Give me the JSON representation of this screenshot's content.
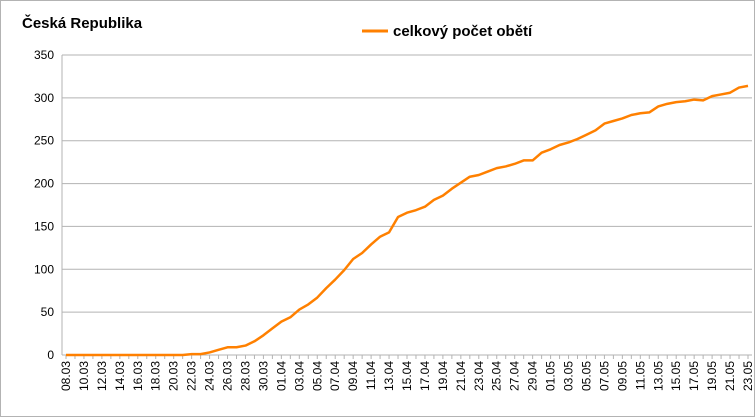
{
  "chart_data": {
    "type": "line",
    "title": "Česká Republika",
    "categories": [
      "08.03",
      null,
      "10.03",
      null,
      "12.03",
      null,
      "14.03",
      null,
      "16.03",
      null,
      "18.03",
      null,
      "20.03",
      null,
      "22.03",
      null,
      "24.03",
      null,
      "26.03",
      null,
      "28.03",
      null,
      "30.03",
      null,
      "01.04",
      null,
      "03.04",
      null,
      "05.04",
      null,
      "07.04",
      null,
      "09.04",
      null,
      "11.04",
      null,
      "13.04",
      null,
      "15.04",
      null,
      "17.04",
      null,
      "19.04",
      null,
      "21.04",
      null,
      "23.04",
      null,
      "25.04",
      null,
      "27.04",
      null,
      "29.04",
      null,
      "01.05",
      null,
      "03.05",
      null,
      "05.05",
      null,
      "07.05",
      null,
      "09.05",
      null,
      "11.05",
      null,
      "13.05",
      null,
      "15.05",
      null,
      "17.05",
      null,
      "19.05",
      null,
      "21.05",
      null,
      "23.05"
    ],
    "series": [
      {
        "name": "celkový počet obětí",
        "color": "#ff8000",
        "values": [
          0,
          0,
          0,
          0,
          0,
          0,
          0,
          0,
          0,
          0,
          0,
          0,
          0,
          0,
          1,
          1,
          3,
          6,
          9,
          9,
          11,
          16,
          23,
          31,
          39,
          44,
          53,
          59,
          67,
          78,
          88,
          99,
          112,
          119,
          129,
          138,
          143,
          161,
          166,
          169,
          173,
          181,
          186,
          194,
          201,
          208,
          210,
          214,
          218,
          220,
          223,
          227,
          227,
          236,
          240,
          245,
          248,
          252,
          257,
          262,
          270,
          273,
          276,
          280,
          282,
          283,
          290,
          293,
          295,
          296,
          298,
          297,
          302,
          304,
          306,
          312,
          314
        ]
      }
    ],
    "ylim": [
      0,
      350
    ],
    "yticks": [
      0,
      50,
      100,
      150,
      200,
      250,
      300,
      350
    ],
    "grid": true
  }
}
